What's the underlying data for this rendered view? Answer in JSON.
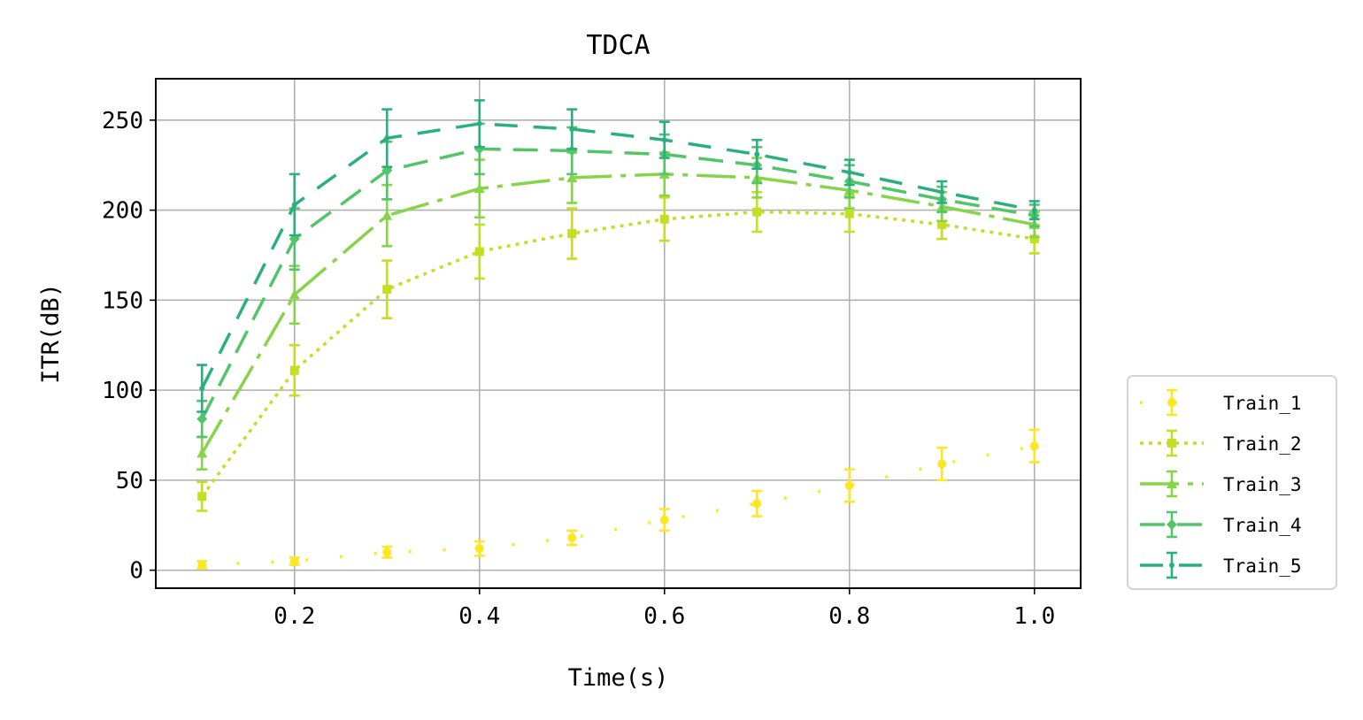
{
  "chart_data": {
    "type": "line",
    "title": "TDCA",
    "xlabel": "Time(s)",
    "ylabel": "ITR(dB)",
    "xlim": [
      0.05,
      1.05
    ],
    "ylim": [
      -10,
      273
    ],
    "xticks": [
      0.2,
      0.4,
      0.6,
      0.8,
      1.0
    ],
    "xtick_labels": [
      "0.2",
      "0.4",
      "0.6",
      "0.8",
      "1.0"
    ],
    "yticks": [
      0,
      50,
      100,
      150,
      200,
      250
    ],
    "ytick_labels": [
      "0",
      "50",
      "100",
      "150",
      "200",
      "250"
    ],
    "grid": true,
    "legend_position": "outside-lower-right",
    "x": [
      0.1,
      0.2,
      0.3,
      0.4,
      0.5,
      0.6,
      0.7,
      0.8,
      0.9,
      1.0
    ],
    "series": [
      {
        "name": "Train_1",
        "color": "#fde725",
        "dash": "dotted-sparse",
        "marker": "circle",
        "values": [
          3,
          5,
          10,
          12,
          18,
          28,
          37,
          47,
          59,
          69
        ],
        "errors": [
          2,
          2,
          3,
          4,
          4,
          6,
          7,
          9,
          9,
          9
        ]
      },
      {
        "name": "Train_2",
        "color": "#c2df23",
        "dash": "dotted",
        "marker": "square",
        "values": [
          41,
          111,
          156,
          177,
          187,
          195,
          199,
          198,
          192,
          184
        ],
        "errors": [
          8,
          14,
          16,
          15,
          14,
          12,
          11,
          10,
          8,
          8
        ]
      },
      {
        "name": "Train_3",
        "color": "#86d549",
        "dash": "dashdot",
        "marker": "triangle",
        "values": [
          65,
          153,
          197,
          212,
          218,
          220,
          218,
          211,
          202,
          192
        ],
        "errors": [
          9,
          16,
          17,
          16,
          14,
          12,
          11,
          10,
          8,
          7
        ]
      },
      {
        "name": "Train_4",
        "color": "#52c569",
        "dash": "dashed",
        "marker": "diamond",
        "values": [
          84,
          184,
          222,
          234,
          233,
          231,
          225,
          216,
          206,
          197
        ],
        "errors": [
          10,
          17,
          16,
          14,
          13,
          11,
          10,
          9,
          7,
          6
        ]
      },
      {
        "name": "Train_5",
        "color": "#2ab07f",
        "dash": "longdash",
        "marker": "point",
        "values": [
          101,
          203,
          240,
          248,
          245,
          239,
          231,
          221,
          210,
          200
        ],
        "errors": [
          13,
          17,
          16,
          13,
          11,
          10,
          8,
          7,
          6,
          5
        ]
      }
    ]
  }
}
